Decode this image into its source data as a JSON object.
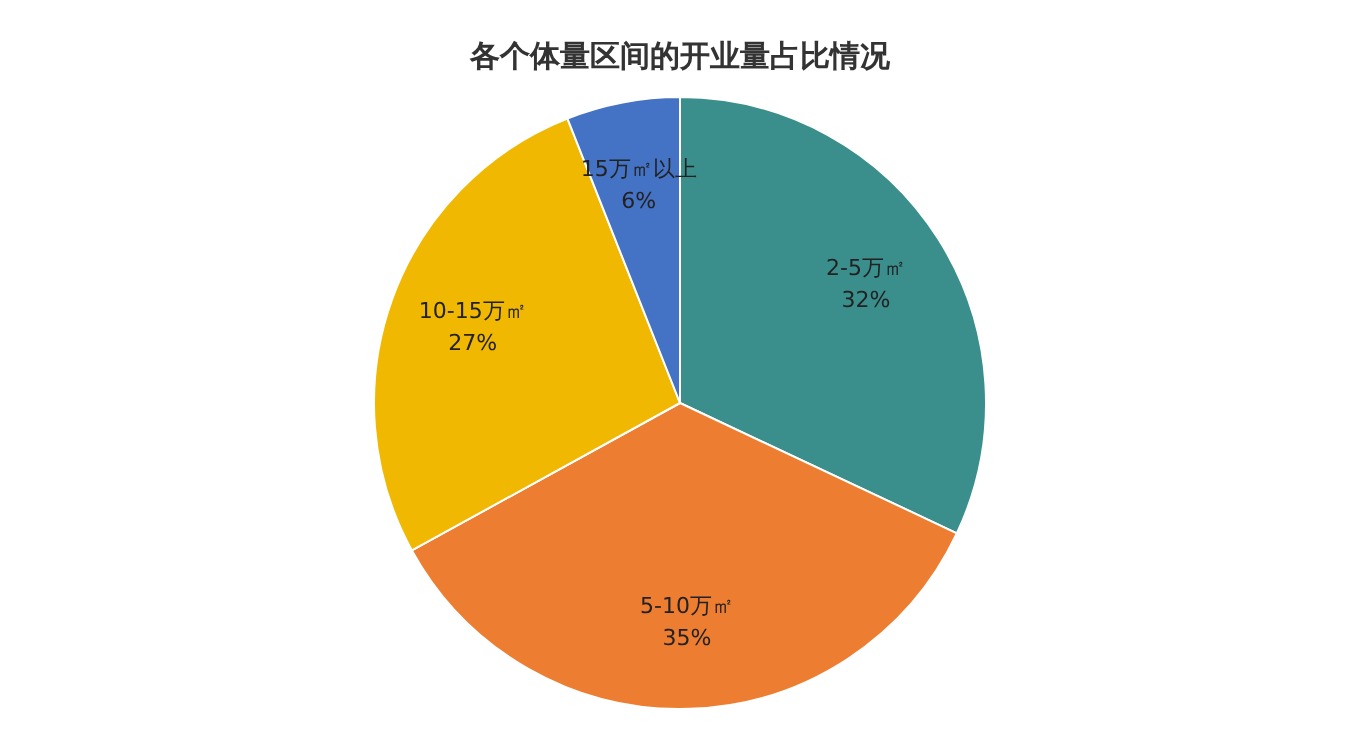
{
  "chart_data": {
    "type": "pie",
    "title": "各个体量区间的开业量占比情况",
    "categories": [
      "2-5万㎡",
      "5-10万㎡",
      "10-15万㎡",
      "15万㎡以上"
    ],
    "values": [
      32,
      35,
      27,
      6
    ],
    "value_labels": [
      "32%",
      "35%",
      "27%",
      "6%"
    ],
    "colors": [
      "#3a8f8c",
      "#ed7d31",
      "#f0b800",
      "#4472c4"
    ],
    "legend": false
  }
}
